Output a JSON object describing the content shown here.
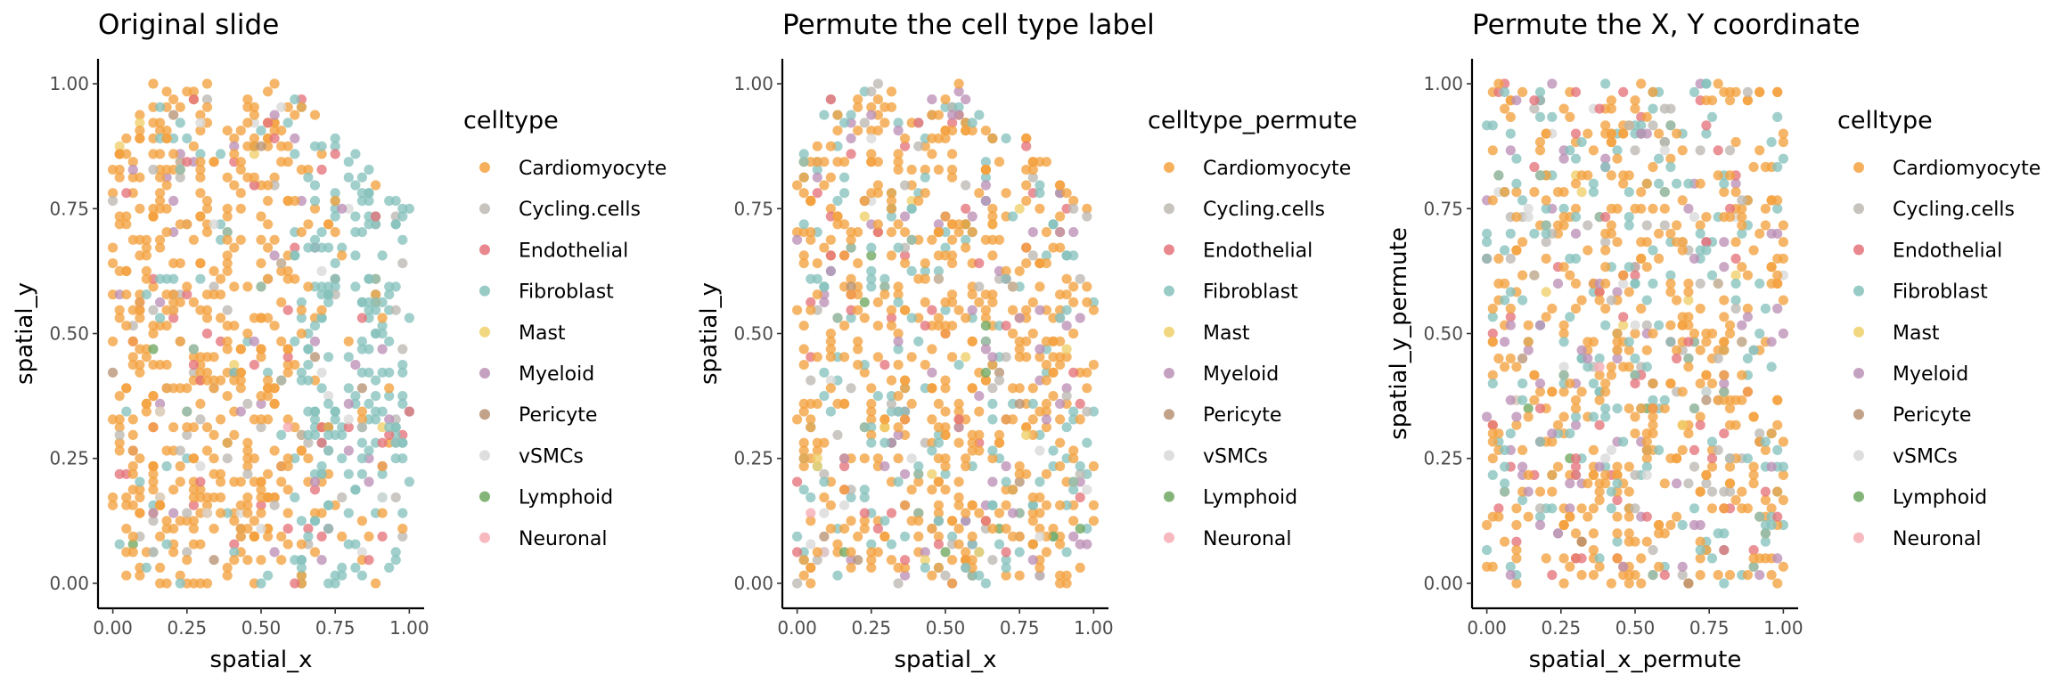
{
  "legend_colors": {
    "Cardiomyocyte": "#F4A23F",
    "Cycling.cells": "#BDB8B2",
    "Endothelial": "#E4737A",
    "Fibroblast": "#86C2BC",
    "Mast": "#EFD06A",
    "Myeloid": "#BB90B6",
    "Pericyte": "#B79273",
    "vSMCs": "#D8D8D8",
    "Lymphoid": "#6FA860",
    "Neuronal": "#F6ABB3"
  },
  "chart_data": [
    {
      "type": "scatter",
      "title": "Original slide",
      "xlabel": "spatial_x",
      "ylabel": "spatial_y",
      "xlim": [
        -0.05,
        1.05
      ],
      "ylim": [
        -0.05,
        1.05
      ],
      "xticks": [
        "0.00",
        "0.25",
        "0.50",
        "0.75",
        "1.00"
      ],
      "yticks": [
        "0.00",
        "0.25",
        "0.50",
        "0.75",
        "1.00"
      ],
      "grid": false,
      "legend_title": "celltype",
      "legend_placement": "right",
      "series": [
        {
          "name": "Cardiomyocyte"
        },
        {
          "name": "Cycling.cells"
        },
        {
          "name": "Endothelial"
        },
        {
          "name": "Fibroblast"
        },
        {
          "name": "Mast"
        },
        {
          "name": "Myeloid"
        },
        {
          "name": "Pericyte"
        },
        {
          "name": "vSMCs"
        },
        {
          "name": "Lymphoid"
        },
        {
          "name": "Neuronal"
        }
      ],
      "points_fraction_note": "",
      "distribution": "original"
    },
    {
      "type": "scatter",
      "title": "Permute the cell type label",
      "xlabel": "spatial_x",
      "ylabel": "spatial_y",
      "xlim": [
        -0.05,
        1.05
      ],
      "ylim": [
        -0.05,
        1.05
      ],
      "xticks": [
        "0.00",
        "0.25",
        "0.50",
        "0.75",
        "1.00"
      ],
      "yticks": [
        "0.00",
        "0.25",
        "0.50",
        "0.75",
        "1.00"
      ],
      "grid": false,
      "legend_title": "celltype_permute",
      "legend_placement": "right",
      "series": [
        {
          "name": "Cardiomyocyte"
        },
        {
          "name": "Cycling.cells"
        },
        {
          "name": "Endothelial"
        },
        {
          "name": "Fibroblast"
        },
        {
          "name": "Mast"
        },
        {
          "name": "Myeloid"
        },
        {
          "name": "Pericyte"
        },
        {
          "name": "vSMCs"
        },
        {
          "name": "Lymphoid"
        },
        {
          "name": "Neuronal"
        }
      ],
      "points_fraction_note": "",
      "distribution": "permute_label"
    },
    {
      "type": "scatter",
      "title": "Permute the X, Y coordinate",
      "xlabel": "spatial_x_permute",
      "ylabel": "spatial_y_permute",
      "xlim": [
        -0.05,
        1.05
      ],
      "ylim": [
        -0.05,
        1.05
      ],
      "xticks": [
        "0.00",
        "0.25",
        "0.50",
        "0.75",
        "1.00"
      ],
      "yticks": [
        "0.00",
        "0.25",
        "0.50",
        "0.75",
        "1.00"
      ],
      "grid": false,
      "legend_title": "celltype",
      "legend_placement": "right",
      "series": [
        {
          "name": "Cardiomyocyte"
        },
        {
          "name": "Cycling.cells"
        },
        {
          "name": "Endothelial"
        },
        {
          "name": "Fibroblast"
        },
        {
          "name": "Mast"
        },
        {
          "name": "Myeloid"
        },
        {
          "name": "Pericyte"
        },
        {
          "name": "vSMCs"
        },
        {
          "name": "Lymphoid"
        },
        {
          "name": "Neuronal"
        }
      ],
      "points_fraction_note": "",
      "distribution": "permute_xy"
    }
  ]
}
